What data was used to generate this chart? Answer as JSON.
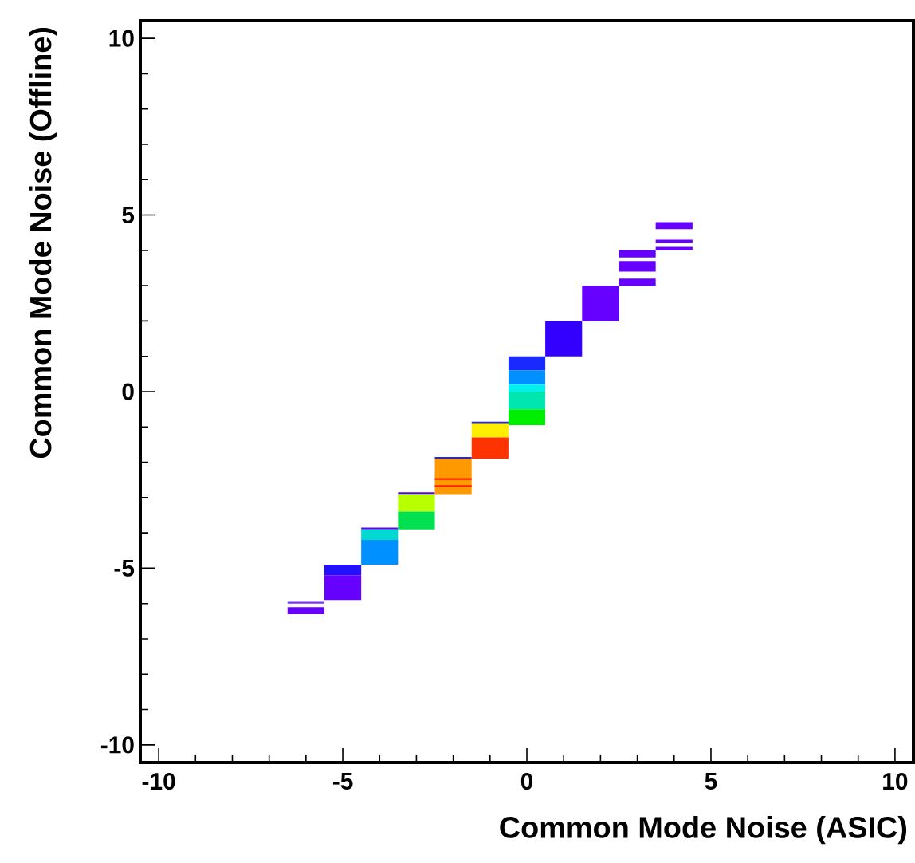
{
  "chart_data": {
    "type": "bar",
    "xlabel": "Common Mode Noise (ASIC)",
    "ylabel": "Common Mode Noise (Offline)",
    "series": [
      {
        "x": [
          -6,
          -5,
          -4,
          -3,
          -2,
          -1,
          0,
          1,
          2,
          3,
          4
        ],
        "base": [
          -6.0,
          -5.2,
          -3.9,
          -2.9,
          -1.9,
          -0.9,
          0.6,
          1.0,
          2.0,
          3.8,
          4.6
        ],
        "values": [
          0.05,
          0.3,
          0.05,
          0.05,
          0.05,
          0.05,
          0.4,
          1.0,
          1.0,
          0.2,
          0.2
        ],
        "colors": [
          "#7a33ff",
          "#2211ff",
          "#6600ff",
          "#5500ff",
          "#2222ff",
          "#2222ff",
          "#1a2aff",
          "#3300ff",
          "#6600ff",
          "#6600ff",
          "#6600ff"
        ]
      },
      {
        "x": [
          -6,
          -5,
          -4,
          -3,
          -2,
          -1,
          0,
          3,
          4
        ],
        "base": [
          -6.3,
          -5.9,
          -4.2,
          -3.4,
          -2.9,
          -1.3,
          0.2,
          3.4,
          4.2
        ],
        "values": [
          0.2,
          0.7,
          0.3,
          0.5,
          1.0,
          0.4,
          0.4,
          0.3,
          0.1
        ],
        "colors": [
          "#6600ff",
          "#6600ff",
          "#00d8d0",
          "#b8ff00",
          "#ff9900",
          "#ffee00",
          "#0090ff",
          "#6600ff",
          "#6600ff"
        ]
      },
      {
        "x": [
          -4,
          -3,
          -2,
          -1,
          0,
          3,
          4
        ],
        "base": [
          -4.9,
          -3.9,
          -2.5,
          -1.9,
          0.0,
          3.0,
          4.0
        ],
        "values": [
          0.7,
          0.5,
          0.05,
          0.6,
          0.2,
          0.2,
          0.1
        ],
        "colors": [
          "#0090ff",
          "#00e050",
          "#ff2200",
          "#ff3300",
          "#00f0f0",
          "#6600ff",
          "#6600ff"
        ]
      },
      {
        "x": [
          -2,
          0
        ],
        "base": [
          -2.7,
          -0.5
        ],
        "values": [
          0.05,
          0.5
        ],
        "colors": [
          "#ff2200",
          "#00e6b0"
        ]
      },
      {
        "x": [
          0
        ],
        "base": [
          -0.95
        ],
        "values": [
          0.45
        ],
        "colors": [
          "#00ee00"
        ]
      }
    ],
    "xlim": [
      -10.5,
      10.5
    ],
    "ylim": [
      -10.5,
      10.5
    ],
    "xticks": [
      -10,
      -5,
      0,
      5,
      10
    ],
    "yticks": [
      -10,
      -5,
      0,
      5,
      10
    ],
    "grid": false
  }
}
